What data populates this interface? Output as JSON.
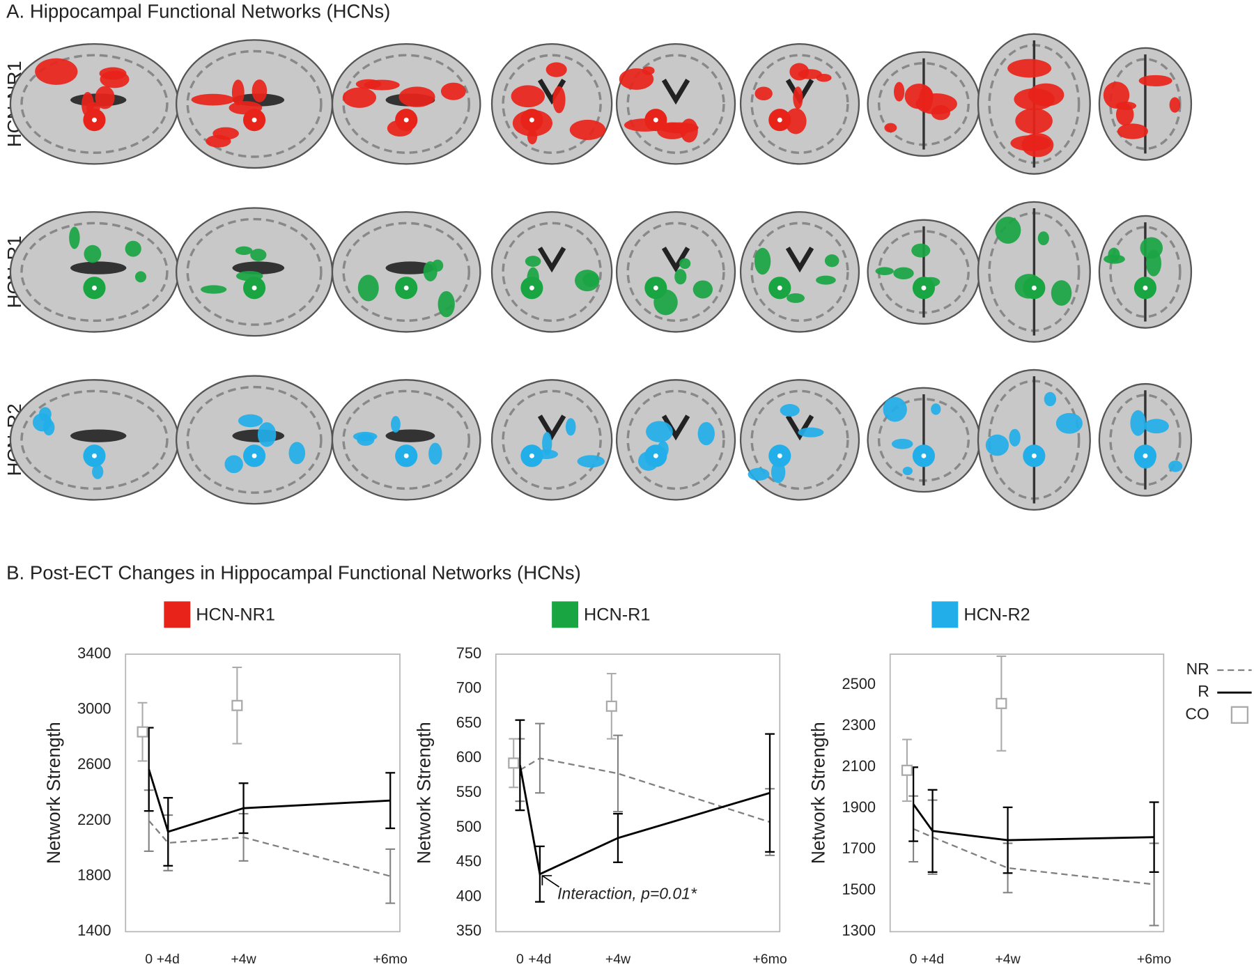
{
  "panel_a": {
    "title": "A. Hippocampal Functional Networks (HCNs)",
    "rows": [
      "HCN-NR1",
      "HCN-R1",
      "HCN-R2"
    ]
  },
  "panel_b": {
    "title": "B. Post-ECT Changes in Hippocampal Functional Networks (HCNs)"
  },
  "chart_data": [
    {
      "type": "line",
      "title": "HCN-NR1",
      "color": "#e8231a",
      "ylabel": "Network Strength",
      "categories": [
        "0",
        "+4d",
        "+4w",
        "+6mo"
      ],
      "ylim": [
        1400,
        3400
      ],
      "yticks": [
        1400,
        1800,
        2200,
        2600,
        3000,
        3400
      ],
      "series": [
        {
          "name": "NR",
          "color": "#808080",
          "style": "dashed",
          "values": [
            2200,
            2040,
            2080,
            1800
          ],
          "errors": [
            220,
            200,
            170,
            195
          ]
        },
        {
          "name": "R",
          "color": "#000000",
          "style": "solid",
          "values": [
            2570,
            2120,
            2290,
            2345
          ],
          "errors": [
            300,
            245,
            180,
            200
          ]
        },
        {
          "name": "CO",
          "color": "#aaaaaa",
          "style": "square",
          "values": [
            2840,
            null,
            3030,
            null
          ],
          "errors": [
            210,
            null,
            275,
            null
          ]
        }
      ]
    },
    {
      "type": "line",
      "title": "HCN-R1",
      "color": "#1aa543",
      "ylabel": "Network Strength",
      "categories": [
        "0",
        "+4d",
        "+4w",
        "+6mo"
      ],
      "ylim": [
        350,
        750
      ],
      "yticks": [
        350,
        400,
        450,
        500,
        550,
        600,
        650,
        700,
        750
      ],
      "annotation": "Interaction, p=0.01*",
      "series": [
        {
          "name": "NR",
          "color": "#808080",
          "style": "dashed",
          "values": [
            583,
            600,
            578,
            508
          ],
          "errors": [
            45,
            50,
            55,
            48
          ]
        },
        {
          "name": "R",
          "color": "#000000",
          "style": "solid",
          "values": [
            590,
            433,
            485,
            550
          ],
          "errors": [
            65,
            40,
            35,
            85
          ]
        },
        {
          "name": "CO",
          "color": "#aaaaaa",
          "style": "square",
          "values": [
            593,
            null,
            675,
            null
          ],
          "errors": [
            35,
            null,
            47,
            null
          ]
        }
      ]
    },
    {
      "type": "line",
      "title": "HCN-R2",
      "color": "#22aee8",
      "ylabel": "Network Strength",
      "categories": [
        "0",
        "+4d",
        "+4w",
        "+6mo"
      ],
      "ylim": [
        1300,
        2650
      ],
      "yticks": [
        1300,
        1500,
        1700,
        1900,
        2100,
        2300,
        2500
      ],
      "series": [
        {
          "name": "NR",
          "color": "#808080",
          "style": "dashed",
          "values": [
            1800,
            1760,
            1610,
            1530
          ],
          "errors": [
            160,
            180,
            120,
            200
          ]
        },
        {
          "name": "R",
          "color": "#000000",
          "style": "solid",
          "values": [
            1920,
            1790,
            1745,
            1760
          ],
          "errors": [
            180,
            200,
            160,
            170
          ]
        },
        {
          "name": "CO",
          "color": "#aaaaaa",
          "style": "square",
          "values": [
            2085,
            null,
            2410,
            null
          ],
          "errors": [
            150,
            null,
            230,
            null
          ]
        }
      ]
    }
  ]
}
